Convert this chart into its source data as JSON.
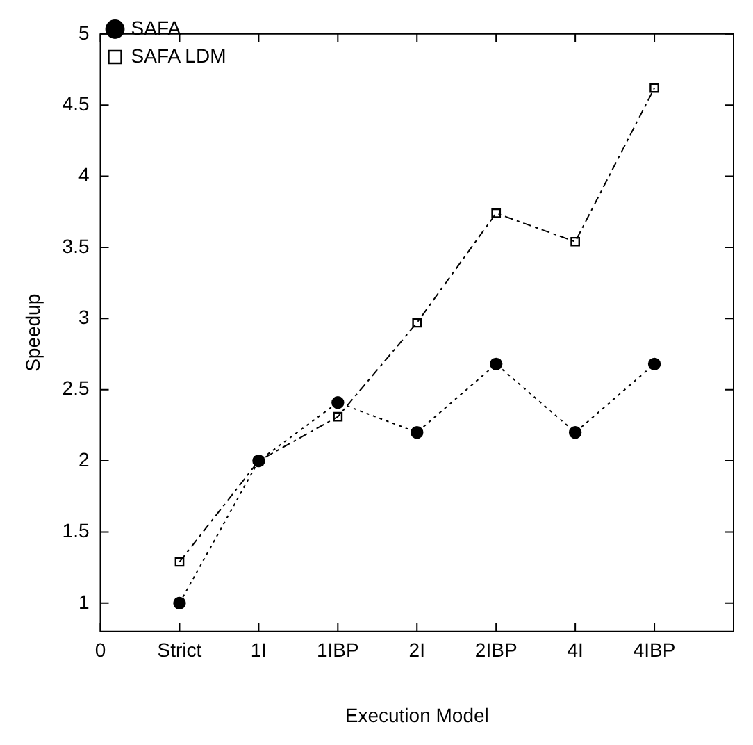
{
  "chart_data": {
    "type": "line",
    "xlabel": "Execution Model",
    "ylabel": "Speedup",
    "categories": [
      "0",
      "Strict",
      "1I",
      "1IBP",
      "2I",
      "2IBP",
      "4I",
      "4IBP",
      null
    ],
    "ylim": [
      0.8,
      5
    ],
    "yticks": [
      1,
      1.5,
      2,
      2.5,
      3,
      3.5,
      4,
      4.5,
      5
    ],
    "series": [
      {
        "name": "SAFA",
        "color": "#000000",
        "marker": "circle",
        "line_style": "dotted",
        "values": [
          null,
          1,
          2,
          2.41,
          2.2,
          2.68,
          2.2,
          2.68,
          null
        ]
      },
      {
        "name": "SAFA LDM",
        "color": "#000000",
        "marker": "square",
        "line_style": "dashed",
        "values": [
          null,
          1.29,
          2,
          2.31,
          2.97,
          3.74,
          3.54,
          4.62,
          null
        ]
      }
    ],
    "legend": "top left"
  }
}
